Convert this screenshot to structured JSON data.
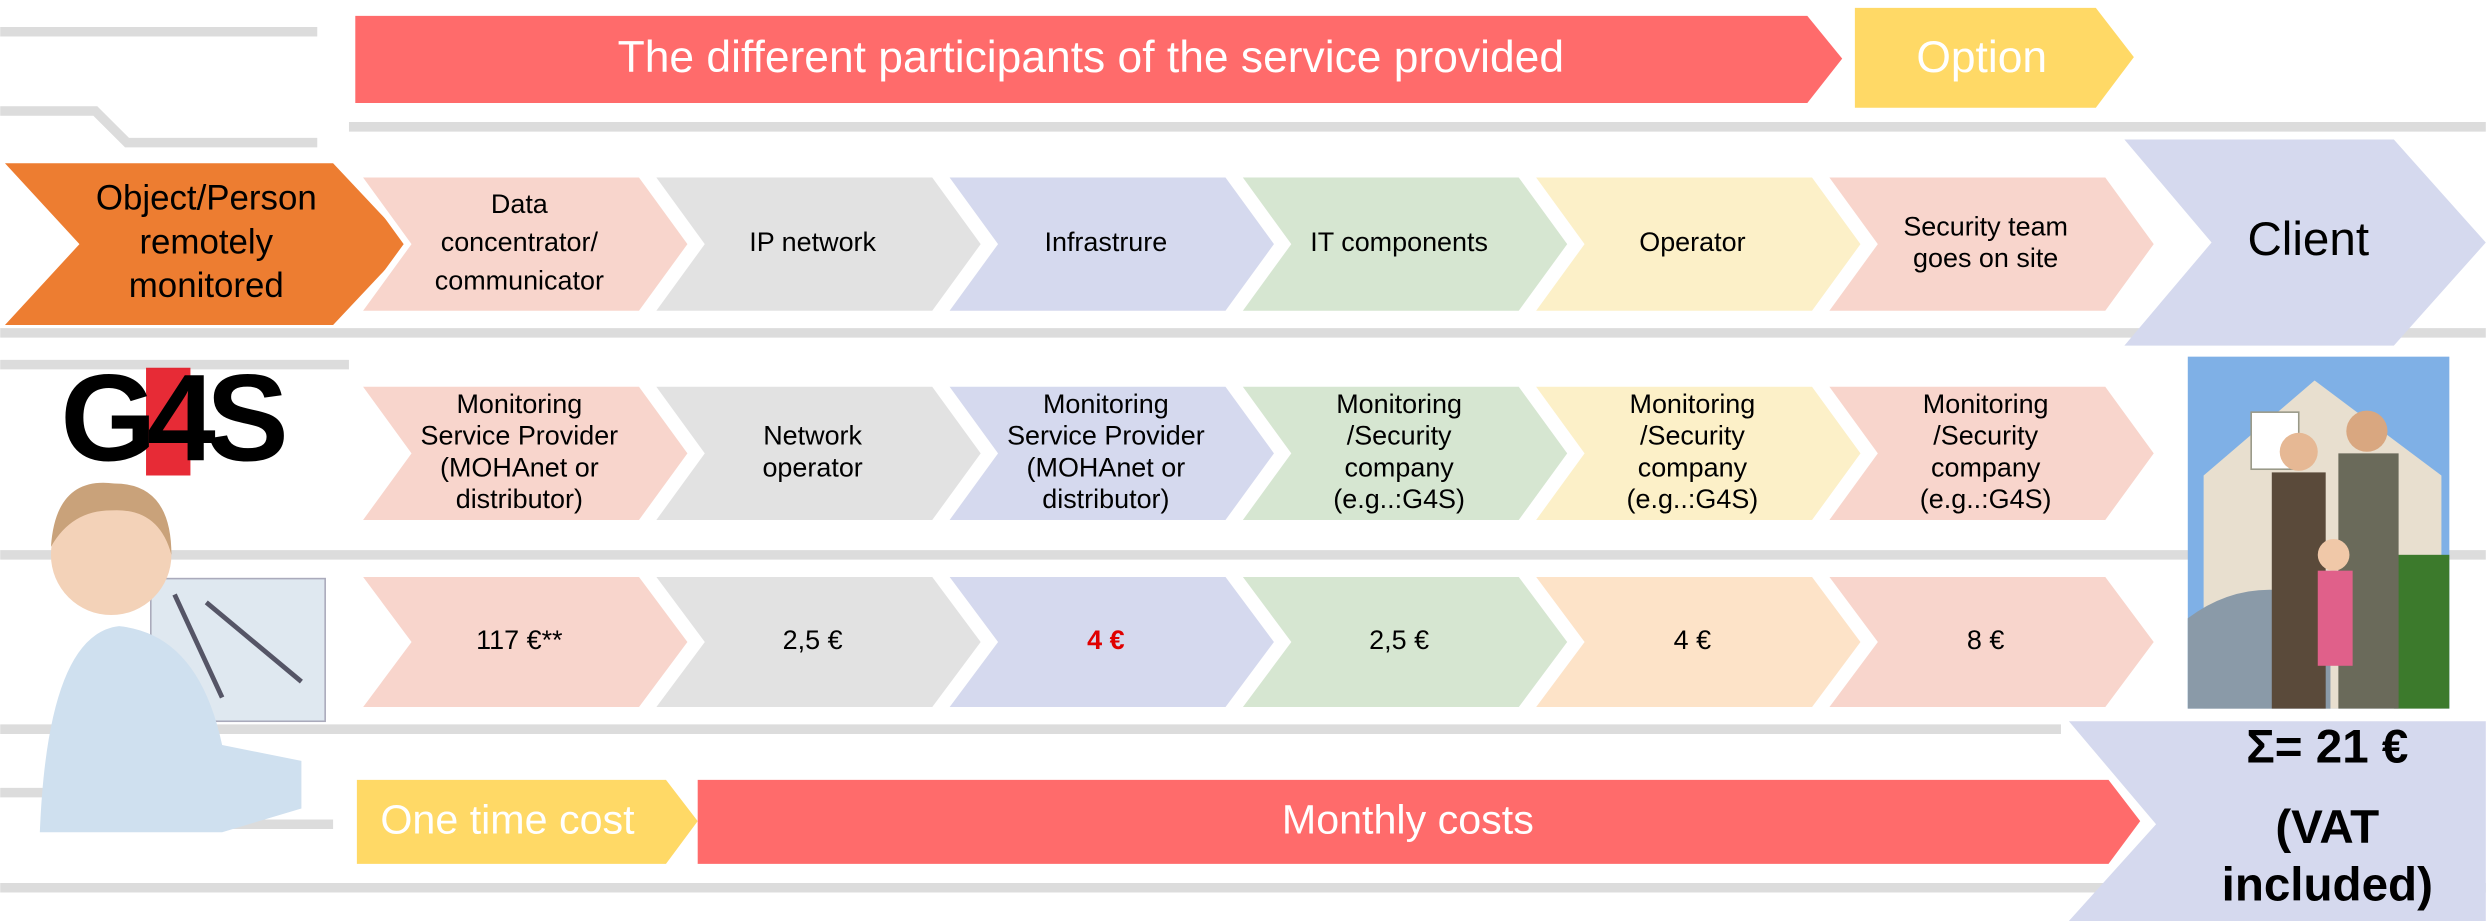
{
  "header": {
    "title": "The different participants of the service provided",
    "option": "Option"
  },
  "source": {
    "lines": [
      "Object/Person",
      "remotely",
      "monitored"
    ]
  },
  "logo": "G4S",
  "participants": [
    {
      "lines": [
        "Data",
        "concentrator/",
        "communicator"
      ]
    },
    {
      "lines": [
        "IP network"
      ]
    },
    {
      "lines": [
        "Infrastrure"
      ]
    },
    {
      "lines": [
        "IT components"
      ]
    },
    {
      "lines": [
        "Operator"
      ]
    },
    {
      "lines": [
        "Security team",
        "goes on site"
      ]
    }
  ],
  "client": "Client",
  "roles": [
    {
      "lines": [
        "Monitoring",
        "Service Provider",
        "(MOHAnet or",
        "distributor)"
      ]
    },
    {
      "lines": [
        "Network",
        "operator"
      ]
    },
    {
      "lines": [
        "Monitoring",
        "Service Provider",
        "(MOHAnet or",
        "distributor)"
      ]
    },
    {
      "lines": [
        "Monitoring",
        "/Security",
        "company",
        "(e.g..:G4S)"
      ]
    },
    {
      "lines": [
        "Monitoring",
        "/Security",
        "company",
        "(e.g..:G4S)"
      ]
    },
    {
      "lines": [
        "Monitoring",
        "/Security",
        "company",
        "(e.g..:G4S)"
      ]
    }
  ],
  "costs": [
    {
      "text": "117 €**"
    },
    {
      "text": "2,5 €"
    },
    {
      "text": "4 €",
      "color": "#e00000"
    },
    {
      "text": "2,5 €"
    },
    {
      "text": "4 €"
    },
    {
      "text": "8 €"
    }
  ],
  "footer": {
    "one_time": "One time cost",
    "monthly": "Monthly costs"
  },
  "total": {
    "sum": "Σ= 21 €",
    "vat_lines": [
      "(VAT",
      "included)"
    ]
  }
}
